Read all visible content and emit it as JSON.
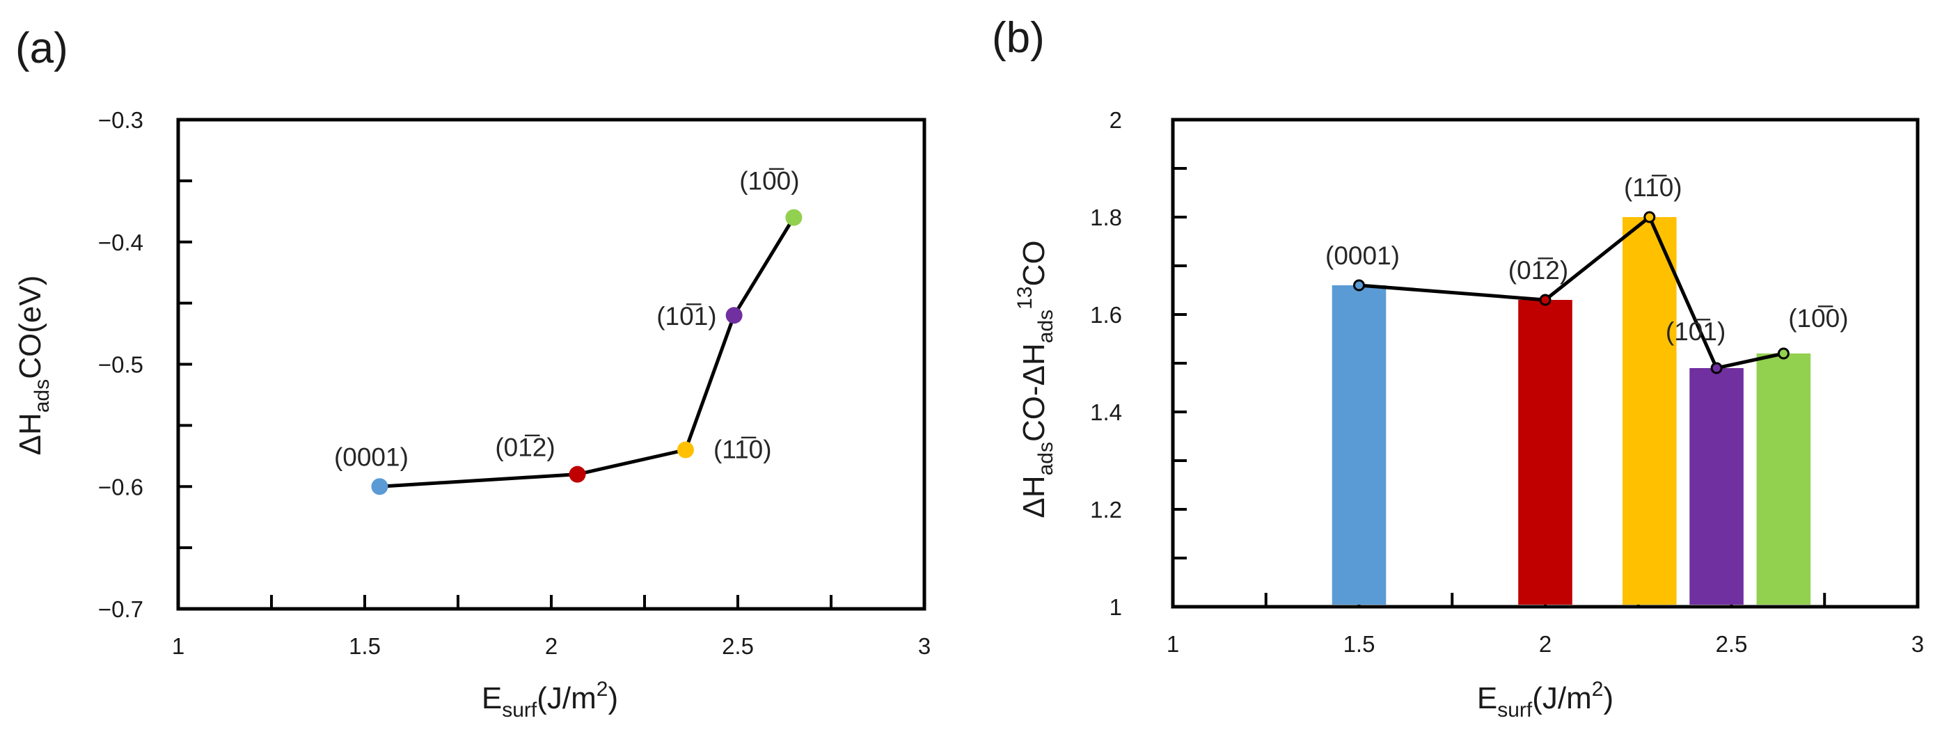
{
  "chart_data": [
    {
      "panel": "(a)",
      "type": "line",
      "xlabel": {
        "main": "E",
        "sub": "surf",
        "rest": "(J/m",
        "sup": "2",
        "close": ")"
      },
      "ylabel": {
        "pre": "ΔH",
        "sub": "ads",
        "post": "CO(eV)"
      },
      "xlim": [
        1,
        3
      ],
      "ylim": [
        -0.7,
        -0.3
      ],
      "xticks": [
        1,
        1.5,
        2,
        2.5,
        3
      ],
      "xtick_labels": [
        "1",
        "1.5",
        "2",
        "2.5",
        "3"
      ],
      "yticks": [
        -0.7,
        -0.6,
        -0.5,
        -0.4,
        -0.3
      ],
      "ytick_labels": [
        "−0.7",
        "−0.6",
        "−0.5",
        "−0.4",
        "−0.3"
      ],
      "points": [
        {
          "label": "(0001)",
          "x": 1.54,
          "y": -0.6,
          "color": "#5B9BD5"
        },
        {
          "label": "(01̅2)",
          "x": 2.07,
          "y": -0.59,
          "color": "#C00000"
        },
        {
          "label": "(11̅0)",
          "x": 2.36,
          "y": -0.57,
          "color": "#FFC000"
        },
        {
          "label": "(10̅1)",
          "x": 2.49,
          "y": -0.46,
          "color": "#7030A0"
        },
        {
          "label": "(10̅0)",
          "x": 2.65,
          "y": -0.38,
          "color": "#92D050"
        }
      ]
    },
    {
      "panel": "(b)",
      "type": "bar",
      "xlabel": {
        "main": "E",
        "sub": "surf",
        "rest": "(J/m",
        "sup": "2",
        "close": ")"
      },
      "ylabel": {
        "a": "ΔH",
        "a_sub": "ads",
        "b": "CO-ΔH",
        "b_sub": "ads",
        "c_sup": "13",
        "c": "CO"
      },
      "xlim": [
        1,
        3
      ],
      "ylim": [
        1,
        2
      ],
      "xticks": [
        1,
        1.5,
        2,
        2.5,
        3
      ],
      "xtick_labels": [
        "1",
        "1.5",
        "2",
        "2.5",
        "3"
      ],
      "yticks": [
        1,
        1.2,
        1.4,
        1.6,
        1.8,
        2
      ],
      "ytick_labels": [
        "1",
        "1.2",
        "1.4",
        "1.6",
        "1.8",
        "2"
      ],
      "bars": [
        {
          "label": "(0001)",
          "x": 1.5,
          "y": 1.66,
          "color": "#5B9BD5"
        },
        {
          "label": "(01̅2)",
          "x": 2.0,
          "y": 1.63,
          "color": "#C00000"
        },
        {
          "label": "(11̅0)",
          "x": 2.28,
          "y": 1.8,
          "color": "#FFC000"
        },
        {
          "label": "(10̅1)",
          "x": 2.46,
          "y": 1.49,
          "color": "#7030A0"
        },
        {
          "label": "(10̅0)",
          "x": 2.64,
          "y": 1.52,
          "color": "#92D050"
        }
      ]
    }
  ]
}
